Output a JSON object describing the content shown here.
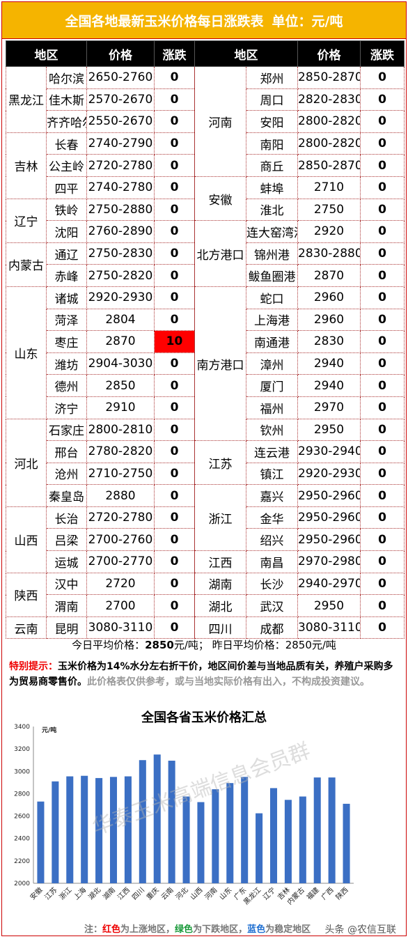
{
  "header": {
    "title": "全国各地最新玉米价格每日涨跌表",
    "unit": "单位：元/吨"
  },
  "columns": [
    "地区",
    "价格",
    "涨跌",
    "地区",
    "价格",
    "涨跌"
  ],
  "left": [
    {
      "region": "黑龙江",
      "span": 3,
      "cities": [
        {
          "city": "哈尔滨",
          "price": "2650-2760",
          "change": "0"
        },
        {
          "city": "佳木斯",
          "price": "2570-2670",
          "change": "0"
        },
        {
          "city": "齐齐哈尔",
          "price": "2550-2670",
          "change": "0"
        }
      ]
    },
    {
      "region": "吉林",
      "span": 3,
      "cities": [
        {
          "city": "长春",
          "price": "2740-2790",
          "change": "0"
        },
        {
          "city": "公主岭",
          "price": "2720-2780",
          "change": "0"
        },
        {
          "city": "四平",
          "price": "2740-2780",
          "change": "0"
        }
      ]
    },
    {
      "region": "辽宁",
      "span": 2,
      "cities": [
        {
          "city": "铁岭",
          "price": "2750-2880",
          "change": "0"
        },
        {
          "city": "沈阳",
          "price": "2760-2890",
          "change": "0"
        }
      ]
    },
    {
      "region": "内蒙古",
      "span": 2,
      "cities": [
        {
          "city": "通辽",
          "price": "2750-2830",
          "change": "0"
        },
        {
          "city": "赤峰",
          "price": "2750-2820",
          "change": "0"
        }
      ]
    },
    {
      "region": "山东",
      "span": 6,
      "cities": [
        {
          "city": "诸城",
          "price": "2920-2930",
          "change": "0"
        },
        {
          "city": "菏泽",
          "price": "2804",
          "change": "0"
        },
        {
          "city": "枣庄",
          "price": "2870",
          "change": "10",
          "up": true
        },
        {
          "city": "潍坊",
          "price": "2904-3030",
          "change": "0"
        },
        {
          "city": "德州",
          "price": "2850",
          "change": "0"
        },
        {
          "city": "济宁",
          "price": "2910",
          "change": "0"
        }
      ]
    },
    {
      "region": "河北",
      "span": 4,
      "cities": [
        {
          "city": "石家庄",
          "price": "2800-2810",
          "change": "0"
        },
        {
          "city": "邢台",
          "price": "2780-2820",
          "change": "0"
        },
        {
          "city": "沧州",
          "price": "2710-2750",
          "change": "0"
        },
        {
          "city": "秦皇岛",
          "price": "2880",
          "change": "0"
        }
      ]
    },
    {
      "region": "山西",
      "span": 3,
      "cities": [
        {
          "city": "长治",
          "price": "2720-2780",
          "change": "0"
        },
        {
          "city": "吕梁",
          "price": "2700-2760",
          "change": "0"
        },
        {
          "city": "运城",
          "price": "2700-2770",
          "change": "0"
        }
      ]
    },
    {
      "region": "陕西",
      "span": 2,
      "cities": [
        {
          "city": "汉中",
          "price": "2720",
          "change": "0"
        },
        {
          "city": "渭南",
          "price": "2700",
          "change": "0"
        }
      ]
    },
    {
      "region": "云南",
      "span": 1,
      "cities": [
        {
          "city": "昆明",
          "price": "3080-3110",
          "change": "0"
        }
      ]
    }
  ],
  "right": [
    {
      "region": "河南",
      "span": 5,
      "cities": [
        {
          "city": "郑州",
          "price": "2850-2870",
          "change": "0"
        },
        {
          "city": "周口",
          "price": "2820-2830",
          "change": "0"
        },
        {
          "city": "安阳",
          "price": "2800-2820",
          "change": "0"
        },
        {
          "city": "南阳",
          "price": "2800-2820",
          "change": "0"
        },
        {
          "city": "商丘",
          "price": "2850-2870",
          "change": "0"
        }
      ]
    },
    {
      "region": "安徽",
      "span": 2,
      "cities": [
        {
          "city": "蚌埠",
          "price": "2710",
          "change": "0"
        },
        {
          "city": "淮北",
          "price": "2750",
          "change": "0"
        }
      ]
    },
    {
      "region": "北方港口",
      "span": 3,
      "cities": [
        {
          "city": "连大窑湾港",
          "price": "2920",
          "change": "0"
        },
        {
          "city": "锦州港",
          "price": "2830-2880",
          "change": "0"
        },
        {
          "city": "鲅鱼圈港",
          "price": "2870",
          "change": "0"
        }
      ]
    },
    {
      "region": "南方港口",
      "span": 7,
      "cities": [
        {
          "city": "蛇口",
          "price": "2960",
          "change": "0"
        },
        {
          "city": "上海港",
          "price": "2960",
          "change": "0"
        },
        {
          "city": "南通港",
          "price": "2830",
          "change": "0"
        },
        {
          "city": "漳州",
          "price": "2940",
          "change": "0"
        },
        {
          "city": "厦门",
          "price": "2940",
          "change": "0"
        },
        {
          "city": "福州",
          "price": "2970",
          "change": "0"
        },
        {
          "city": "钦州",
          "price": "2950",
          "change": "0"
        }
      ]
    },
    {
      "region": "江苏",
      "span": 2,
      "cities": [
        {
          "city": "连云港",
          "price": "2930-2940",
          "change": "0"
        },
        {
          "city": "镇江",
          "price": "2920-2930",
          "change": "0"
        }
      ]
    },
    {
      "region": "浙江",
      "span": 3,
      "cities": [
        {
          "city": "嘉兴",
          "price": "2950-2960",
          "change": "0"
        },
        {
          "city": "金华",
          "price": "2950-2960",
          "change": "0"
        },
        {
          "city": "绍兴",
          "price": "2950-2960",
          "change": "0"
        }
      ]
    },
    {
      "region": "江西",
      "span": 1,
      "cities": [
        {
          "city": "南昌",
          "price": "2970-2980",
          "change": "0"
        }
      ]
    },
    {
      "region": "湖南",
      "span": 1,
      "cities": [
        {
          "city": "长沙",
          "price": "2940-2970",
          "change": "0"
        }
      ]
    },
    {
      "region": "湖北",
      "span": 1,
      "cities": [
        {
          "city": "武汉",
          "price": "2950",
          "change": "0"
        }
      ]
    },
    {
      "region": "四川",
      "span": 1,
      "cities": [
        {
          "city": "成都",
          "price": "3080-3110",
          "change": "0"
        }
      ]
    }
  ],
  "summary": {
    "today_label": "今日平均价格：",
    "today_value": "2850",
    "today_unit": "元/吨；",
    "yesterday_label": "昨日平均价格：",
    "yesterday_value": "2850元/吨"
  },
  "notice": {
    "label": "特别提示：",
    "text": "玉米价格为14%水分左右折干价，地区间价差与当地品质有关，养殖户采购多为贸易商零售价。",
    "disclaimer": "此价格表仅供参考，或与当地实际价格有出入，不构成投资建议。"
  },
  "watermark": "华泰玉米高端信息会员群",
  "colors": {
    "header_bg": "#f5b400",
    "bar": "#3b6fc4",
    "up": "#ff0000"
  },
  "chart_data": {
    "type": "bar",
    "title": "全国各省玉米价格汇总",
    "ylabel": "元/吨",
    "ylim": [
      2000,
      3400
    ],
    "yticks": [
      2000,
      2200,
      2400,
      2600,
      2800,
      3000,
      3200,
      3400
    ],
    "categories": [
      "安徽",
      "江苏",
      "浙江",
      "上海",
      "湖北",
      "湖南",
      "江西",
      "四川",
      "重庆",
      "云南",
      "河北",
      "山西",
      "河南",
      "山东",
      "广东",
      "黑龙江",
      "辽宁",
      "吉林",
      "内蒙古",
      "福建",
      "广西",
      "陕西"
    ],
    "values": [
      2730,
      2910,
      2955,
      2960,
      2940,
      2950,
      2955,
      3100,
      3150,
      3095,
      2775,
      2725,
      2840,
      2895,
      2950,
      2625,
      2850,
      2745,
      2775,
      2945,
      2945,
      2710
    ],
    "grid": false,
    "legend": "none"
  },
  "legend_note": {
    "prefix": "注：",
    "red": "红色",
    "red_text": "为上涨地区，",
    "green": "绿色",
    "green_text": "为下跌地区，",
    "blue": "蓝色",
    "blue_text": "为稳定地区"
  },
  "credit": "头条 @农信互联"
}
